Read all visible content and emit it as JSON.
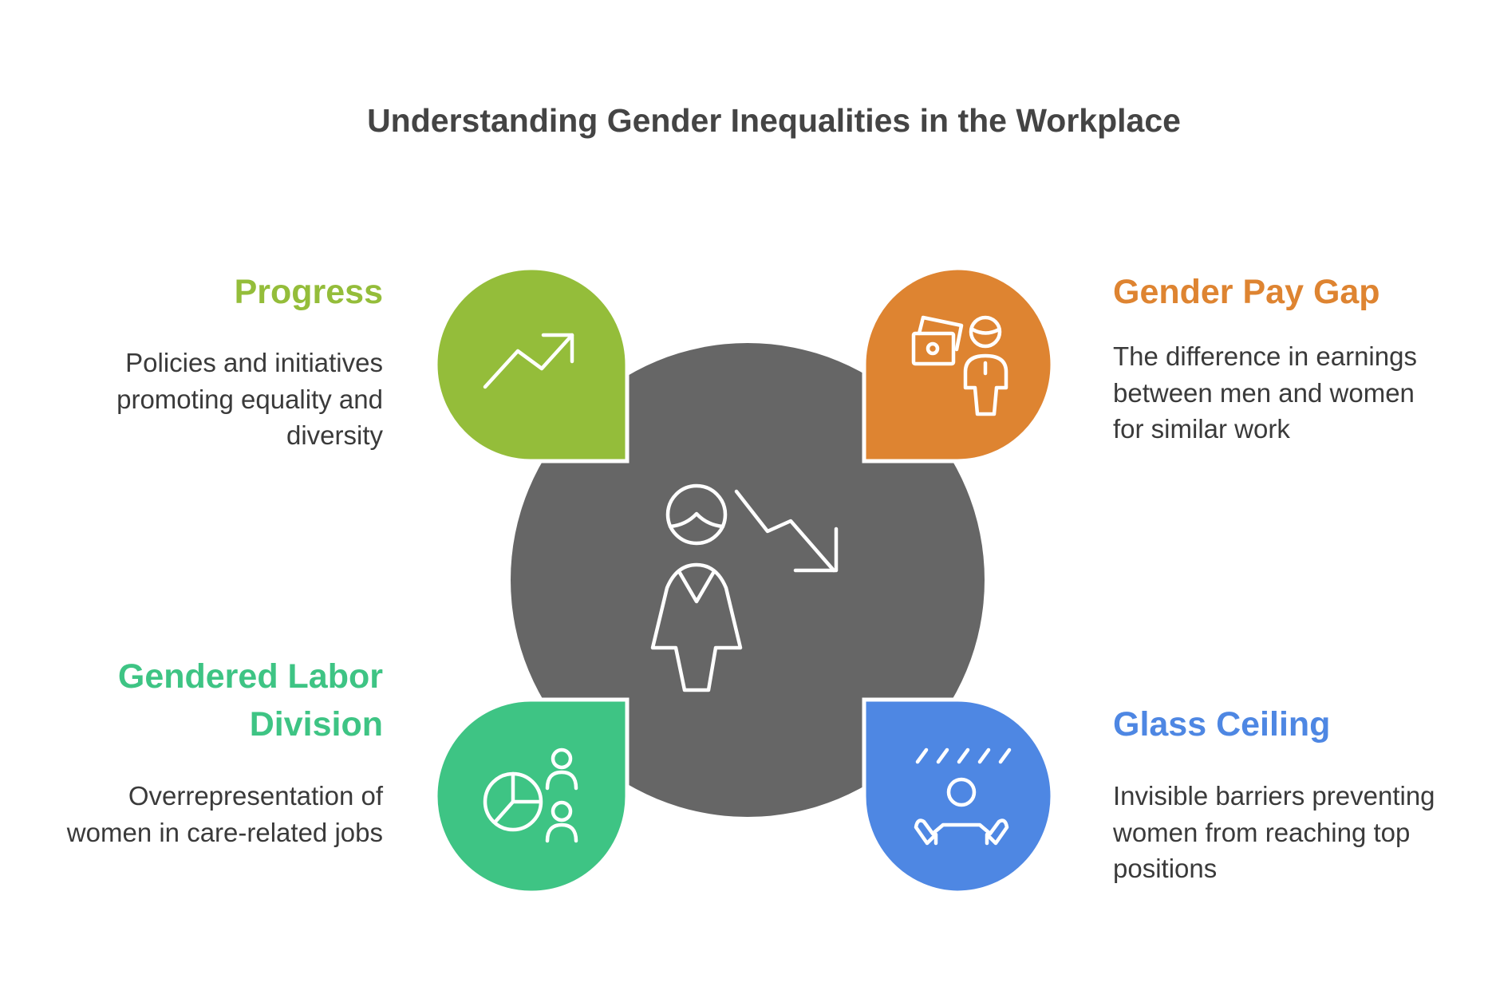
{
  "title": "Understanding Gender Inequalities in the Workplace",
  "colors": {
    "center": "#666666",
    "progress": "#94BD3A",
    "pay_gap": "#DE8431",
    "labor": "#3EC484",
    "glass": "#4E87E3"
  },
  "center_icon": "woman-with-declining-trend-icon",
  "items": [
    {
      "heading": "Progress",
      "text": "Policies and initiatives promoting equality and diversity",
      "icon": "trend-up-arrow-icon"
    },
    {
      "heading": "Gender Pay Gap",
      "text": "The difference in earnings between men and women for similar work",
      "icon": "money-and-person-icon"
    },
    {
      "heading": "Gendered Labor Division",
      "text": "Overrepresentation of women in care-related jobs",
      "icon": "pie-chart-people-icon"
    },
    {
      "heading": "Glass Ceiling",
      "text": "Invisible barriers preventing women from reaching top positions",
      "icon": "person-under-ceiling-icon"
    }
  ]
}
